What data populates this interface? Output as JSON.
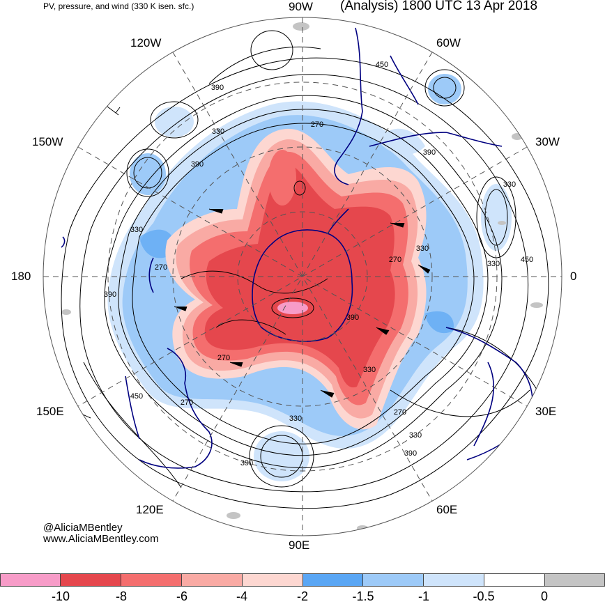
{
  "header": {
    "left": "PV, pressure, and wind (330 K isen. sfc.)",
    "right": "(Analysis) 1800 UTC 13 Apr 2018"
  },
  "credits": {
    "handle": "@AliciaMBentley",
    "website": "www.AliciaMBentley.com"
  },
  "longitude_labels": {
    "top": "90W",
    "upper_left": "120W",
    "upper_right": "60W",
    "left_upper": "150W",
    "right_upper": "30W",
    "left": "180",
    "right": "0",
    "left_lower": "150E",
    "right_lower": "30E",
    "lower_left": "120E",
    "lower_right": "60E",
    "bottom": "90E"
  },
  "contour_labels": [
    "390",
    "330",
    "270",
    "450",
    "390",
    "330",
    "270",
    "330",
    "390",
    "450",
    "330",
    "270",
    "390",
    "330",
    "270",
    "450",
    "390",
    "330",
    "270",
    "330",
    "390",
    "270",
    "330",
    "390"
  ],
  "legend": {
    "ticks": [
      "-10",
      "-8",
      "-6",
      "-4",
      "-2",
      "-1.5",
      "-1",
      "-0.5",
      "0"
    ],
    "colors": [
      "#f79cc8",
      "#e5474d",
      "#f46e6e",
      "#f9aaa4",
      "#fdd7d1",
      "#5aa6f4",
      "#9dcaf8",
      "#cfe4fb",
      "#ffffff",
      "#c4c4c4"
    ]
  },
  "colors": {
    "pv_strong": "#e5474d",
    "pv_mid": "#f46e6e",
    "pv_light": "#f9aaa4",
    "pv_faint": "#fdd7d1",
    "pv_pink": "#f79cc8",
    "pv_blue": "#5aa6f4",
    "pv_blue_light": "#9dcaf8",
    "pv_blue_faint": "#cfe4fb",
    "coast": "#000080",
    "gray": "#c4c4c4"
  }
}
